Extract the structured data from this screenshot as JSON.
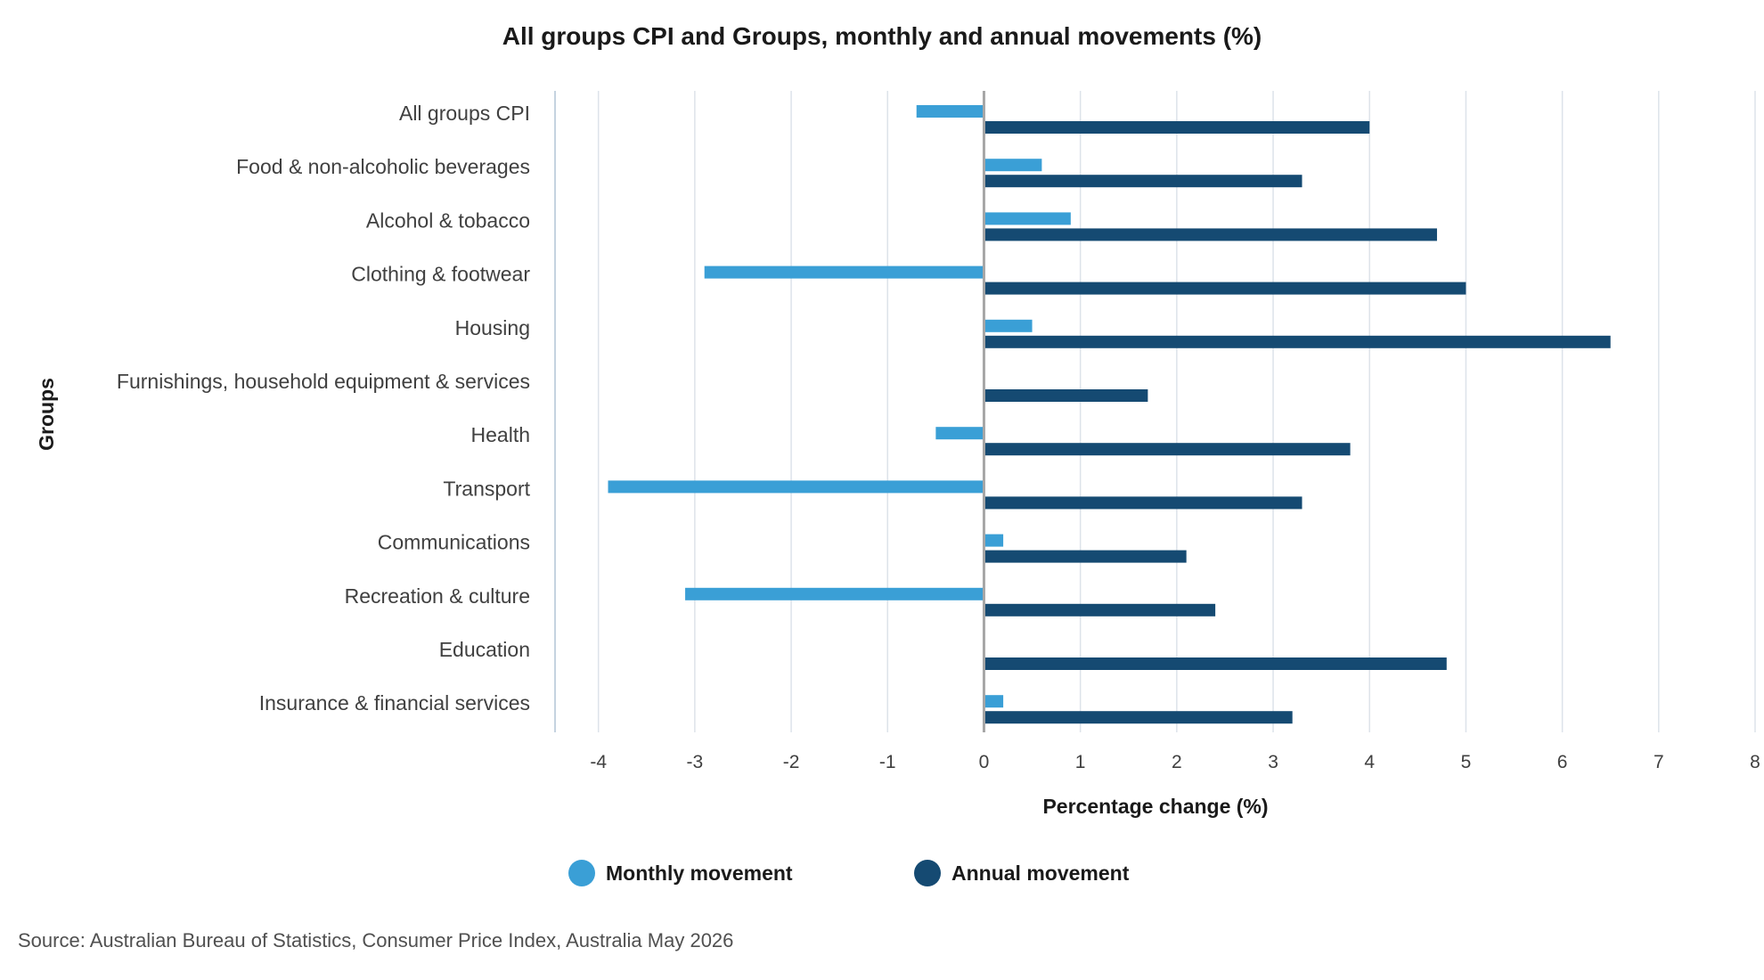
{
  "chart_data": {
    "type": "bar",
    "orientation": "horizontal",
    "title": "All groups CPI and Groups, monthly and annual movements (%)",
    "xlabel": "Percentage change (%)",
    "ylabel": "Groups",
    "xlim": [
      -4.45,
      8
    ],
    "xticks": [
      "-4",
      "-3",
      "-2",
      "-1",
      "0",
      "1",
      "2",
      "3",
      "4",
      "5",
      "6",
      "7",
      "8"
    ],
    "grid": true,
    "legend_position": "bottom",
    "categories": [
      "All groups CPI",
      "Food & non-alcoholic beverages",
      "Alcohol & tobacco",
      "Clothing & footwear",
      "Housing",
      "Furnishings, household equipment & services",
      "Health",
      "Transport",
      "Communications",
      "Recreation & culture",
      "Education",
      "Insurance & financial services"
    ],
    "series": [
      {
        "name": "Monthly movement",
        "color": "#3a9fd6",
        "values": [
          -0.7,
          0.6,
          0.9,
          -2.9,
          0.5,
          0.0,
          -0.5,
          -3.9,
          0.2,
          -3.1,
          0.0,
          0.2
        ]
      },
      {
        "name": "Annual movement",
        "color": "#154a72",
        "values": [
          4.0,
          3.3,
          4.7,
          5.0,
          6.5,
          1.7,
          3.8,
          3.3,
          2.1,
          2.4,
          4.8,
          3.2
        ]
      }
    ],
    "source": "Source: Australian Bureau of Statistics, Consumer Price Index, Australia May 2026"
  }
}
